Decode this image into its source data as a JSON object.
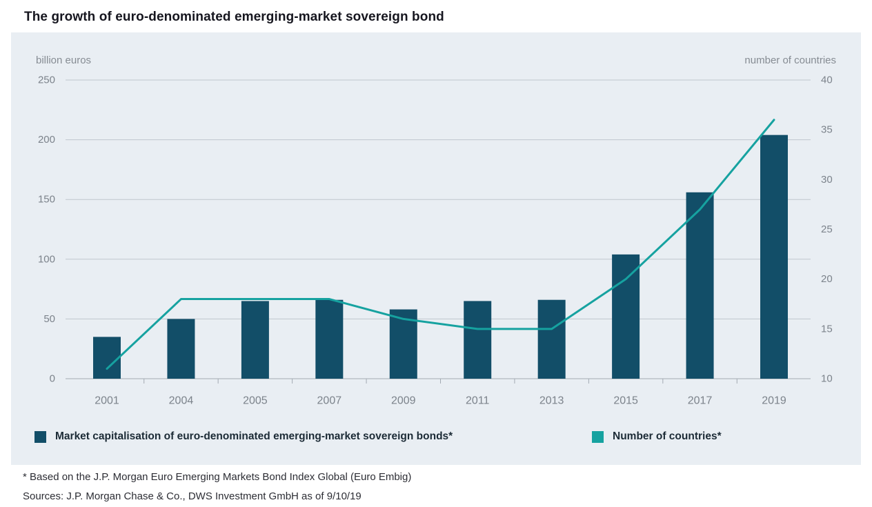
{
  "page": {
    "title": "The growth of euro-denominated emerging-market sovereign bond"
  },
  "chart_data": {
    "type": "bar+line",
    "title": "The growth of euro-denominated emerging-market sovereign bond",
    "categories": [
      "2001",
      "2004",
      "2005",
      "2007",
      "2009",
      "2011",
      "2013",
      "2015",
      "2017",
      "2019"
    ],
    "series": [
      {
        "name": "Market capitalisation of euro-denominated emerging-market sovereign bonds*",
        "type": "bar",
        "axis": "left",
        "color": "#124e68",
        "values": [
          35,
          50,
          65,
          66,
          58,
          65,
          66,
          104,
          156,
          204
        ]
      },
      {
        "name": "Number of countries*",
        "type": "line",
        "axis": "right",
        "color": "#16a2a0",
        "values": [
          11,
          18,
          18,
          18,
          16,
          15,
          15,
          20,
          27,
          36
        ]
      }
    ],
    "left_axis": {
      "label": "billion euros",
      "min": 0,
      "max": 250,
      "ticks": [
        0,
        50,
        100,
        150,
        200,
        250
      ]
    },
    "right_axis": {
      "label": "number of countries",
      "min": 10,
      "max": 40,
      "ticks": [
        10,
        15,
        20,
        25,
        30,
        35,
        40
      ]
    },
    "grid": true,
    "legend_position": "bottom"
  },
  "footnotes": {
    "note1": "* Based on the J.P. Morgan Euro Emerging Markets Bond Index Global (Euro Embig)",
    "note2": "Sources: J.P. Morgan Chase & Co., DWS Investment GmbH as of 9/10/19"
  },
  "colors": {
    "panel_background": "#e9eef3",
    "gridline": "#bfc6cd",
    "axis_line": "#a2aab2",
    "axis_text": "#7c838b",
    "title_text": "#16161f"
  }
}
